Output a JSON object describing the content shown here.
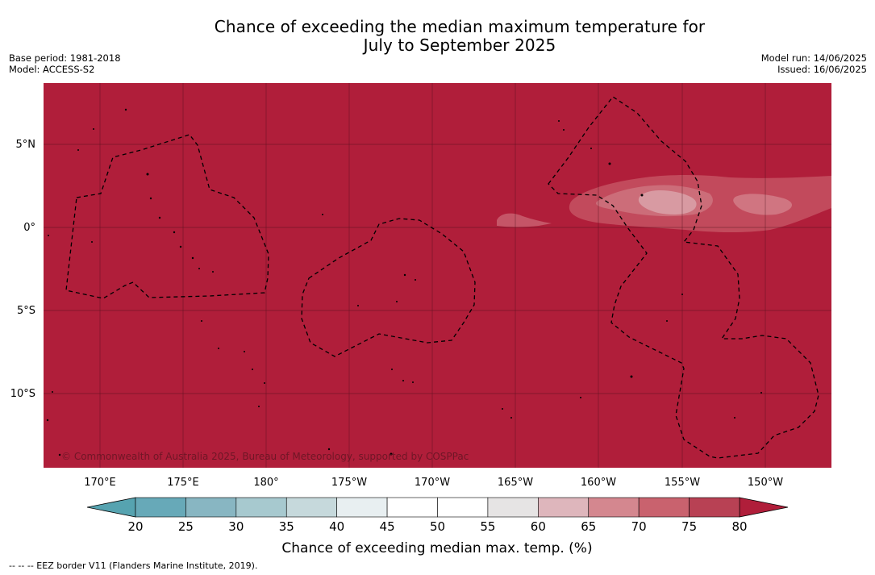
{
  "header": {
    "title_line1": "Chance of exceeding the median maximum temperature for",
    "title_line2": "July to September 2025",
    "base_period": "Base period: 1981-2018",
    "model": "Model: ACCESS-S2",
    "model_run": "Model run: 14/06/2025",
    "issued": "Issued: 16/06/2025"
  },
  "map": {
    "background_color": "#b01e3a",
    "lat_labels": [
      "5°N",
      "0°",
      "5°S",
      "10°S"
    ],
    "lon_labels": [
      "170°E",
      "175°E",
      "180°",
      "175°W",
      "170°W",
      "165°W",
      "160°W",
      "155°W",
      "150°W"
    ],
    "copyright": "© Commonwealth of Australia 2025, Bureau of Meteorology, supported by COSPPac",
    "gridlines": true
  },
  "colorbar": {
    "ticks": [
      "20",
      "25",
      "30",
      "35",
      "40",
      "45",
      "50",
      "55",
      "60",
      "65",
      "70",
      "75",
      "80"
    ],
    "colors": [
      "#67a9b8",
      "#88b6c2",
      "#a7c9cf",
      "#c6d9dc",
      "#e8eff1",
      "#ffffff",
      "#ffffff",
      "#e6e4e4",
      "#deb6bc",
      "#d4878f",
      "#c9626e",
      "#b84154"
    ],
    "under_color": "#56a3b0",
    "over_color": "#b01e3a",
    "label": "Chance of exceeding median max. temp. (%)"
  },
  "footer": {
    "legend_line": "--  --  -- EEZ border V11 (Flanders Marine Institute, 2019)."
  }
}
